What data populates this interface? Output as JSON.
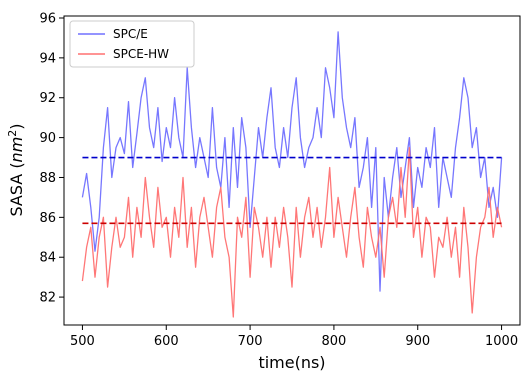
{
  "chart_data": {
    "type": "line",
    "xlabel": "time(ns)",
    "ylabel_main": "SASA (",
    "ylabel_unit": "nm",
    "ylabel_exp": "2",
    "ylabel_close": ")",
    "xlim": [
      478,
      1022
    ],
    "ylim": [
      80.6,
      96.1
    ],
    "xticks": [
      500,
      600,
      700,
      800,
      900,
      1000
    ],
    "yticks": [
      82,
      84,
      86,
      88,
      90,
      92,
      94,
      96
    ],
    "grid": false,
    "legend_position": "top-left",
    "series": [
      {
        "name": "SPC/E",
        "color": "#7070ff",
        "mean": 89.0,
        "mean_color": "#0000cc",
        "x": [
          500,
          505,
          510,
          515,
          520,
          525,
          530,
          535,
          540,
          545,
          550,
          555,
          560,
          565,
          570,
          575,
          580,
          585,
          590,
          595,
          600,
          605,
          610,
          615,
          620,
          625,
          630,
          635,
          640,
          645,
          650,
          655,
          660,
          665,
          670,
          675,
          680,
          685,
          690,
          695,
          700,
          705,
          710,
          715,
          720,
          725,
          730,
          735,
          740,
          745,
          750,
          755,
          760,
          765,
          770,
          775,
          780,
          785,
          790,
          795,
          800,
          805,
          810,
          815,
          820,
          825,
          830,
          835,
          840,
          845,
          850,
          855,
          860,
          865,
          870,
          875,
          880,
          885,
          890,
          895,
          900,
          905,
          910,
          915,
          920,
          925,
          930,
          935,
          940,
          945,
          950,
          955,
          960,
          965,
          970,
          975,
          980,
          985,
          990,
          995,
          1000
        ],
        "y": [
          87.0,
          88.2,
          86.5,
          84.3,
          86.0,
          89.5,
          91.5,
          88.0,
          89.5,
          90.0,
          89.2,
          91.8,
          88.5,
          90.2,
          92.0,
          93.0,
          90.5,
          89.5,
          91.5,
          88.8,
          90.5,
          89.5,
          92.0,
          90.0,
          89.0,
          93.5,
          90.5,
          88.5,
          90.0,
          89.0,
          88.0,
          91.5,
          88.5,
          87.5,
          90.0,
          86.5,
          90.5,
          87.5,
          91.0,
          89.5,
          85.5,
          88.0,
          90.5,
          89.0,
          91.0,
          92.5,
          89.5,
          88.5,
          90.5,
          89.0,
          91.5,
          93.0,
          90.0,
          88.5,
          89.5,
          90.0,
          91.5,
          90.0,
          93.5,
          92.5,
          91.0,
          95.3,
          92.0,
          90.5,
          89.5,
          91.0,
          87.5,
          88.5,
          90.0,
          86.5,
          89.5,
          82.3,
          88.0,
          86.0,
          88.0,
          89.5,
          87.0,
          88.5,
          90.0,
          86.5,
          88.5,
          87.5,
          89.5,
          88.5,
          90.5,
          86.5,
          89.0,
          88.0,
          87.0,
          89.5,
          91.0,
          93.0,
          92.0,
          89.5,
          90.5,
          88.0,
          89.0,
          86.5,
          87.5,
          86.0,
          89.0
        ]
      },
      {
        "name": "SPCE-HW",
        "color": "#ff7070",
        "mean": 85.7,
        "mean_color": "#cc0000",
        "x": [
          500,
          505,
          510,
          515,
          520,
          525,
          530,
          535,
          540,
          545,
          550,
          555,
          560,
          565,
          570,
          575,
          580,
          585,
          590,
          595,
          600,
          605,
          610,
          615,
          620,
          625,
          630,
          635,
          640,
          645,
          650,
          655,
          660,
          665,
          670,
          675,
          680,
          685,
          690,
          695,
          700,
          705,
          710,
          715,
          720,
          725,
          730,
          735,
          740,
          745,
          750,
          755,
          760,
          765,
          770,
          775,
          780,
          785,
          790,
          795,
          800,
          805,
          810,
          815,
          820,
          825,
          830,
          835,
          840,
          845,
          850,
          855,
          860,
          865,
          870,
          875,
          880,
          885,
          890,
          895,
          900,
          905,
          910,
          915,
          920,
          925,
          930,
          935,
          940,
          945,
          950,
          955,
          960,
          965,
          970,
          975,
          980,
          985,
          990,
          995,
          1000
        ],
        "y": [
          82.8,
          84.5,
          85.5,
          83.0,
          85.0,
          86.0,
          82.5,
          84.5,
          86.0,
          84.5,
          85.0,
          87.0,
          84.0,
          86.5,
          85.0,
          88.0,
          86.0,
          84.5,
          87.5,
          85.5,
          86.0,
          84.0,
          86.5,
          85.0,
          88.0,
          84.5,
          86.5,
          83.5,
          86.0,
          87.0,
          85.5,
          84.0,
          86.5,
          87.5,
          85.0,
          84.0,
          81.0,
          86.0,
          85.0,
          87.0,
          83.0,
          86.5,
          85.5,
          84.0,
          86.0,
          83.5,
          86.0,
          84.5,
          86.5,
          85.0,
          82.5,
          86.5,
          84.0,
          86.0,
          87.0,
          85.0,
          86.5,
          84.5,
          86.0,
          88.5,
          85.0,
          87.0,
          85.5,
          84.0,
          86.0,
          87.5,
          85.0,
          83.5,
          86.5,
          85.0,
          84.0,
          85.5,
          83.0,
          86.0,
          87.0,
          85.5,
          88.5,
          86.0,
          89.5,
          85.0,
          86.5,
          84.0,
          86.0,
          85.5,
          83.0,
          85.0,
          84.5,
          86.0,
          84.0,
          85.5,
          83.0,
          86.5,
          84.5,
          81.2,
          84.0,
          85.5,
          86.0,
          87.5,
          85.0,
          86.5,
          85.5
        ]
      }
    ]
  }
}
